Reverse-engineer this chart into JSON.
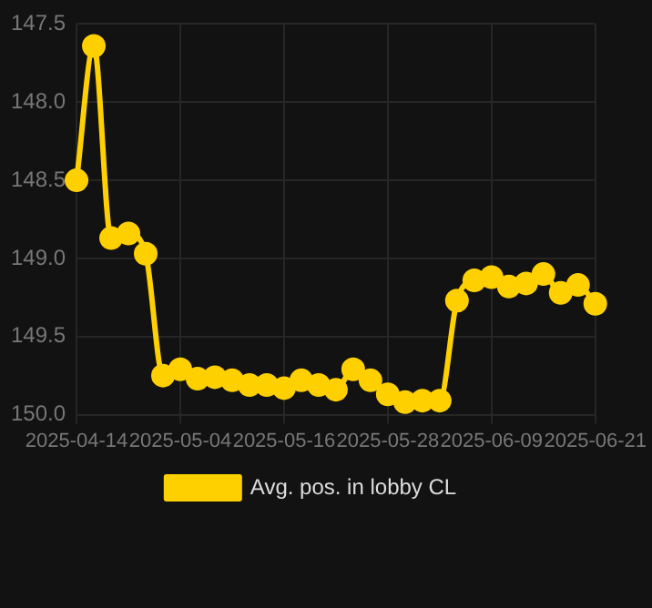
{
  "chart_data": {
    "type": "line",
    "categories": [
      "2025-04-14",
      null,
      null,
      null,
      null,
      null,
      "2025-05-04",
      null,
      null,
      null,
      null,
      null,
      "2025-05-16",
      null,
      null,
      null,
      null,
      null,
      "2025-05-28",
      null,
      null,
      null,
      null,
      null,
      "2025-06-09",
      null,
      null,
      null,
      null,
      null,
      "2025-06-21"
    ],
    "series": [
      {
        "name": "Avg. pos. in lobby CL",
        "color": "#ffd000",
        "values": [
          148.5,
          147.64,
          148.87,
          148.84,
          148.97,
          149.75,
          149.71,
          149.77,
          149.76,
          149.78,
          149.81,
          149.81,
          149.83,
          149.78,
          149.81,
          149.84,
          149.71,
          149.78,
          149.87,
          149.92,
          149.91,
          149.91,
          149.27,
          149.14,
          149.12,
          149.18,
          149.16,
          149.1,
          149.22,
          149.17,
          149.29
        ]
      }
    ],
    "ylim": [
      150.0,
      147.5
    ],
    "yticks": [
      {
        "value": 147.5,
        "label": "147.5"
      },
      {
        "value": 148,
        "label": "148.0"
      },
      {
        "value": 148.5,
        "label": "148.5"
      },
      {
        "value": 149,
        "label": "149.0"
      },
      {
        "value": 149.5,
        "label": "149.5"
      },
      {
        "value": 150,
        "label": "150.0"
      }
    ],
    "grid": true,
    "legend": "bottom",
    "marker": "circle",
    "line_style": "solid"
  }
}
